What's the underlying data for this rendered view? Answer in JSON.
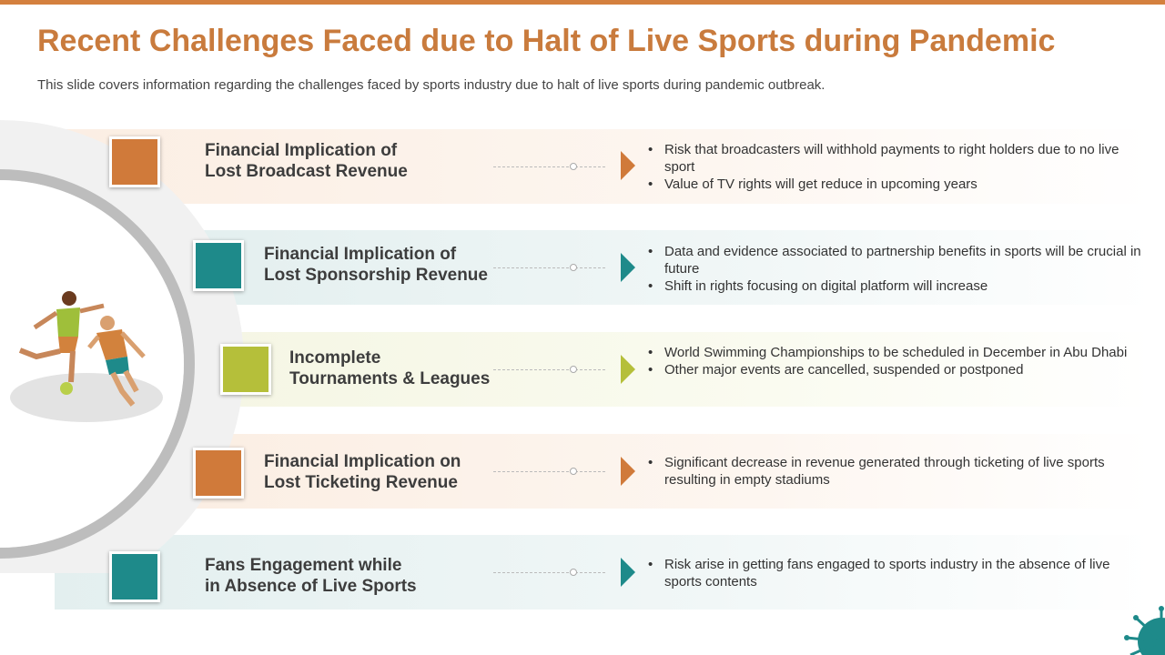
{
  "header": {
    "title": "Recent Challenges Faced due to Halt of Live Sports during Pandemic",
    "subtitle": "This slide covers information regarding the challenges faced by sports industry  due to halt  of live sports during pandemic outbreak."
  },
  "items": [
    {
      "heading": [
        "Financial Implication of",
        "Lost Broadcast Revenue"
      ],
      "bullets": [
        "Risk that  broadcasters will withhold payments to right holders due to no live sport",
        "Value of TV rights will get reduce in upcoming years"
      ]
    },
    {
      "heading": [
        "Financial Implication of",
        "Lost Sponsorship Revenue"
      ],
      "bullets": [
        "Data and evidence associated to partnership benefits in sports will be crucial in future",
        "Shift in rights focusing on digital platform will increase"
      ]
    },
    {
      "heading": [
        "Incomplete",
        "Tournaments & Leagues"
      ],
      "bullets": [
        "World Swimming Championships to be scheduled in December in Abu Dhabi",
        "Other major events are cancelled, suspended or postponed"
      ]
    },
    {
      "heading": [
        "Financial Implication on",
        "Lost Ticketing Revenue"
      ],
      "bullets": [
        "Significant decrease in revenue  generated through ticketing of live sports resulting  in empty stadiums"
      ]
    },
    {
      "heading": [
        "Fans Engagement while",
        "in Absence of Live Sports"
      ],
      "bullets": [
        "Risk arise in getting fans engaged to sports industry  in the absence of live sports contents"
      ]
    }
  ]
}
